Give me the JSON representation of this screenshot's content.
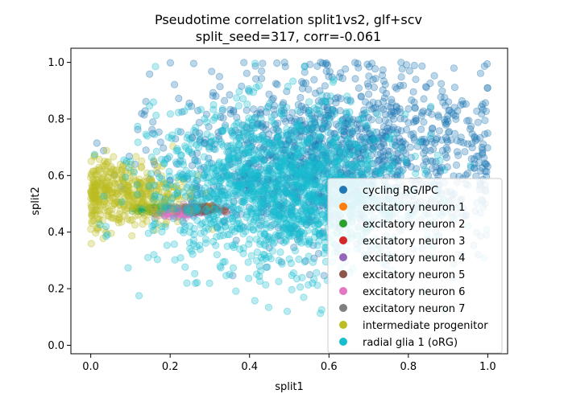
{
  "chart_data": {
    "type": "scatter",
    "title": "Pseudotime correlation split1vs2, glf+scv",
    "subtitle": "split_seed=317, corr=-0.061",
    "xlabel": "split1",
    "ylabel": "split2",
    "xlim": [
      -0.05,
      1.05
    ],
    "ylim": [
      -0.03,
      1.05
    ],
    "xticks": [
      "0.0",
      "0.2",
      "0.4",
      "0.6",
      "0.8",
      "1.0"
    ],
    "xtick_values": [
      0.0,
      0.2,
      0.4,
      0.6,
      0.8,
      1.0
    ],
    "yticks": [
      "0.0",
      "0.2",
      "0.4",
      "0.6",
      "0.8",
      "1.0"
    ],
    "ytick_values": [
      0.0,
      0.2,
      0.4,
      0.6,
      0.8,
      1.0
    ],
    "grid": false,
    "legend_position": "lower-right",
    "marker_alpha": 0.3,
    "series": [
      {
        "name": "cycling RG/IPC",
        "color": "#1f77b4",
        "cx": 0.62,
        "cy": 0.66,
        "sx": 0.2,
        "sy": 0.15,
        "n": 1400
      },
      {
        "name": "excitatory neuron 1",
        "color": "#ff7f0e",
        "cx": 0.24,
        "cy": 0.48,
        "sx": 0.03,
        "sy": 0.008,
        "n": 40
      },
      {
        "name": "excitatory neuron 2",
        "color": "#2ca02c",
        "cx": 0.17,
        "cy": 0.48,
        "sx": 0.03,
        "sy": 0.006,
        "n": 80
      },
      {
        "name": "excitatory neuron 3",
        "color": "#d62728",
        "cx": 0.28,
        "cy": 0.48,
        "sx": 0.02,
        "sy": 0.006,
        "n": 40
      },
      {
        "name": "excitatory neuron 4",
        "color": "#9467bd",
        "cx": 0.24,
        "cy": 0.475,
        "sx": 0.025,
        "sy": 0.012,
        "n": 60
      },
      {
        "name": "excitatory neuron 5",
        "color": "#8c564b",
        "cx": 0.28,
        "cy": 0.48,
        "sx": 0.02,
        "sy": 0.006,
        "n": 60
      },
      {
        "name": "excitatory neuron 6",
        "color": "#e377c2",
        "cx": 0.21,
        "cy": 0.465,
        "sx": 0.02,
        "sy": 0.01,
        "n": 40
      },
      {
        "name": "excitatory neuron 7",
        "color": "#7f7f7f",
        "cx": 0.25,
        "cy": 0.48,
        "sx": 0.02,
        "sy": 0.006,
        "n": 20
      },
      {
        "name": "intermediate progenitor",
        "color": "#bcbd22",
        "cx": 0.08,
        "cy": 0.54,
        "sx": 0.08,
        "sy": 0.06,
        "n": 420
      },
      {
        "name": "radial glia 1 (oRG)",
        "color": "#17becf",
        "cx": 0.48,
        "cy": 0.55,
        "sx": 0.16,
        "sy": 0.14,
        "n": 1600
      }
    ]
  }
}
